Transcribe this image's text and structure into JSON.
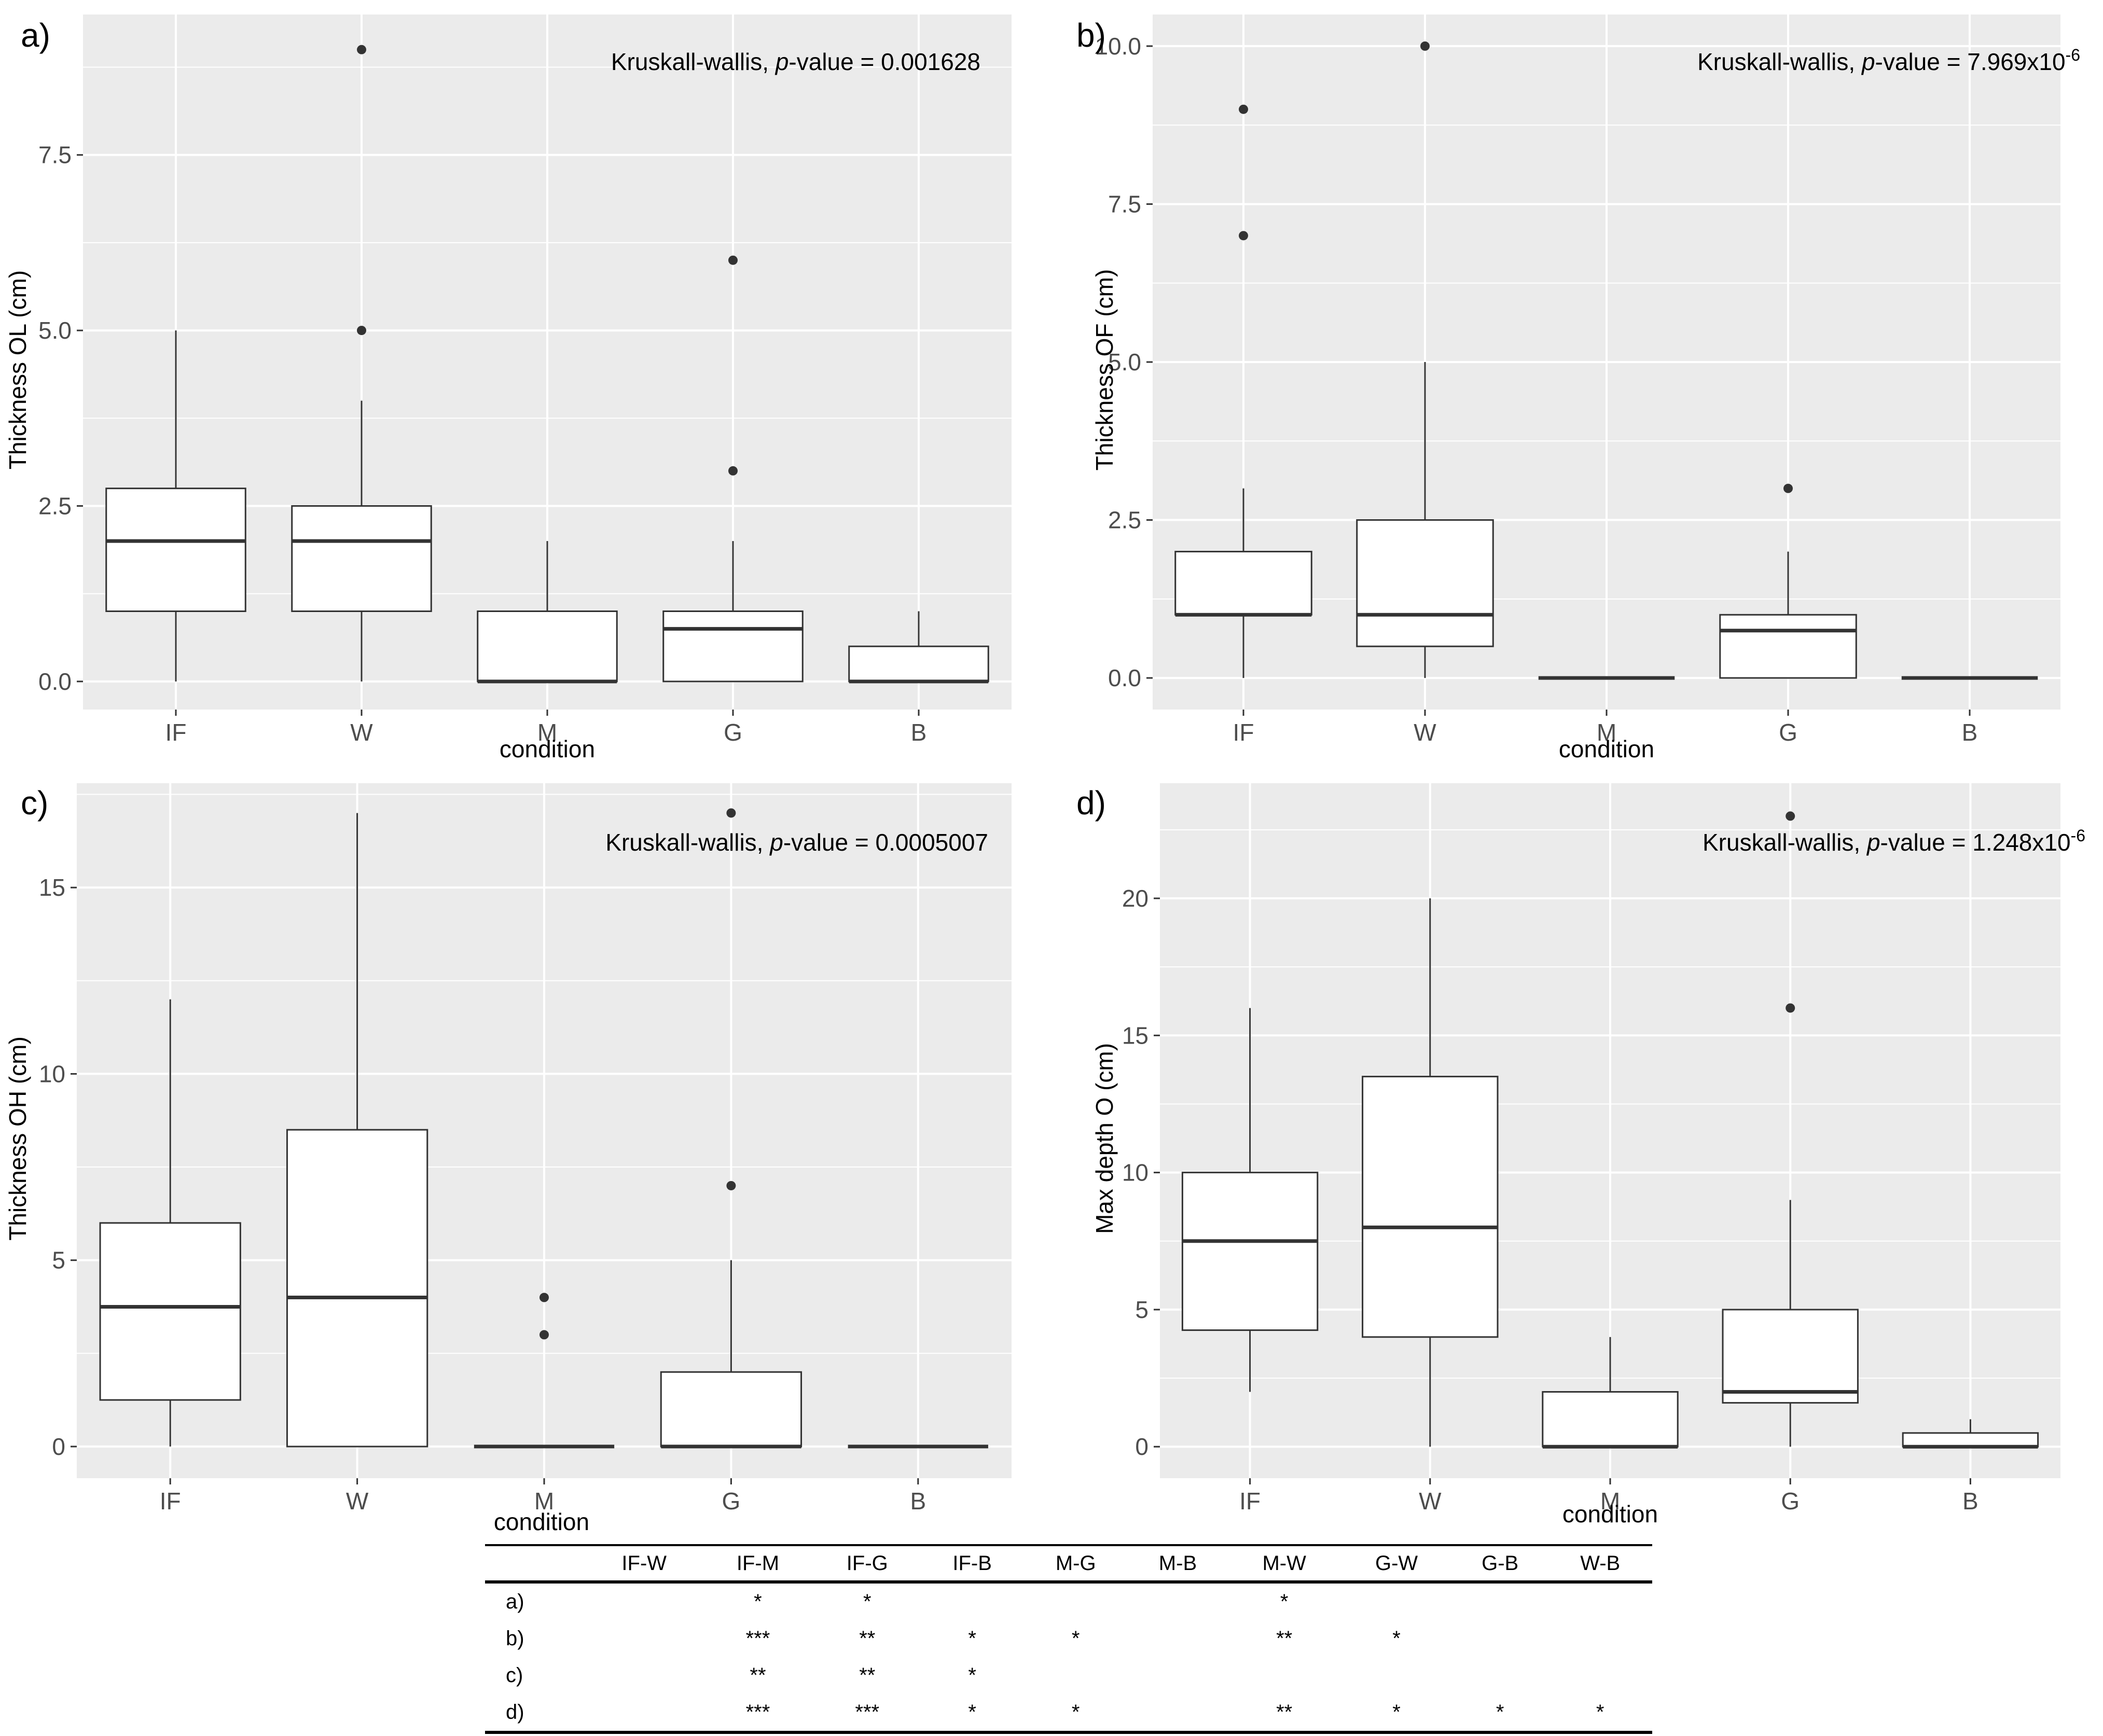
{
  "chart_data": [
    {
      "type": "box",
      "panel_label": "a)",
      "annotation": {
        "prefix": "Kruskall-wallis, ",
        "p": "p",
        "mid": "-value = ",
        "value": "0.001628",
        "exp": ""
      },
      "xlabel": "condition",
      "ylabel": "Thickness OL (cm)",
      "ylim": [
        -0.4,
        9.5
      ],
      "yticks": [
        0,
        2.5,
        5,
        7.5
      ],
      "ytick_labels": [
        "0.0",
        "2.5",
        "5.0",
        "7.5"
      ],
      "categories": [
        "IF",
        "W",
        "M",
        "G",
        "B"
      ],
      "boxes": [
        {
          "category": "IF",
          "whislo": 0,
          "q1": 1,
          "med": 2,
          "q3": 2.75,
          "whishi": 5,
          "fliers": []
        },
        {
          "category": "W",
          "whislo": 0,
          "q1": 1,
          "med": 2,
          "q3": 2.5,
          "whishi": 4,
          "fliers": [
            5,
            9
          ]
        },
        {
          "category": "M",
          "whislo": 0,
          "q1": 0,
          "med": 0,
          "q3": 1,
          "whishi": 2,
          "fliers": []
        },
        {
          "category": "G",
          "whislo": 0,
          "q1": 0,
          "med": 0.75,
          "q3": 1,
          "whishi": 2,
          "fliers": [
            3,
            6
          ]
        },
        {
          "category": "B",
          "whislo": 0,
          "q1": 0,
          "med": 0,
          "q3": 0.5,
          "whishi": 1,
          "fliers": []
        }
      ]
    },
    {
      "type": "box",
      "panel_label": "b)",
      "annotation": {
        "prefix": "Kruskall-wallis, ",
        "p": "p",
        "mid": "-value = ",
        "value": "7.969x10",
        "exp": "-6"
      },
      "xlabel": "condition",
      "ylabel": "Thickness OF (cm)",
      "ylim": [
        -0.5,
        10.5
      ],
      "yticks": [
        0,
        2.5,
        5,
        7.5,
        10
      ],
      "ytick_labels": [
        "0.0",
        "2.5",
        "5.0",
        "7.5",
        "10.0"
      ],
      "categories": [
        "IF",
        "W",
        "M",
        "G",
        "B"
      ],
      "boxes": [
        {
          "category": "IF",
          "whislo": 0,
          "q1": 1,
          "med": 1,
          "q3": 2,
          "whishi": 3,
          "fliers": [
            7,
            9
          ]
        },
        {
          "category": "W",
          "whislo": 0,
          "q1": 0.5,
          "med": 1,
          "q3": 2.5,
          "whishi": 5,
          "fliers": [
            10
          ]
        },
        {
          "category": "M",
          "whislo": 0,
          "q1": 0,
          "med": 0,
          "q3": 0,
          "whishi": 0,
          "fliers": []
        },
        {
          "category": "G",
          "whislo": 0,
          "q1": 0,
          "med": 0.75,
          "q3": 1,
          "whishi": 2,
          "fliers": [
            3
          ]
        },
        {
          "category": "B",
          "whislo": 0,
          "q1": 0,
          "med": 0,
          "q3": 0,
          "whishi": 0,
          "fliers": []
        }
      ]
    },
    {
      "type": "box",
      "panel_label": "c)",
      "annotation": {
        "prefix": "Kruskall-wallis, ",
        "p": "p",
        "mid": "-value = ",
        "value": "0.0005007",
        "exp": ""
      },
      "xlabel": "condition",
      "ylabel": "Thickness OH (cm)",
      "ylim": [
        -0.85,
        17.8
      ],
      "yticks": [
        0,
        5,
        10,
        15
      ],
      "ytick_labels": [
        "0",
        "5",
        "10",
        "15"
      ],
      "categories": [
        "IF",
        "W",
        "M",
        "G",
        "B"
      ],
      "boxes": [
        {
          "category": "IF",
          "whislo": 0,
          "q1": 1.25,
          "med": 3.75,
          "q3": 6,
          "whishi": 12,
          "fliers": []
        },
        {
          "category": "W",
          "whislo": 0,
          "q1": 0,
          "med": 4,
          "q3": 8.5,
          "whishi": 17,
          "fliers": []
        },
        {
          "category": "M",
          "whislo": 0,
          "q1": 0,
          "med": 0,
          "q3": 0,
          "whishi": 0,
          "fliers": [
            3,
            4
          ]
        },
        {
          "category": "G",
          "whislo": 0,
          "q1": 0,
          "med": 0,
          "q3": 2,
          "whishi": 5,
          "fliers": [
            7,
            17
          ]
        },
        {
          "category": "B",
          "whislo": 0,
          "q1": 0,
          "med": 0,
          "q3": 0,
          "whishi": 0,
          "fliers": []
        }
      ]
    },
    {
      "type": "box",
      "panel_label": "d)",
      "annotation": {
        "prefix": "Kruskall-wallis, ",
        "p": "p",
        "mid": "-value = ",
        "value": "1.248x10",
        "exp": "-6"
      },
      "xlabel": "condition",
      "ylabel": "Max depth O (cm)",
      "ylim": [
        -1.15,
        24.2
      ],
      "yticks": [
        0,
        5,
        10,
        15,
        20
      ],
      "ytick_labels": [
        "0",
        "5",
        "10",
        "15",
        "20"
      ],
      "categories": [
        "IF",
        "W",
        "M",
        "G",
        "B"
      ],
      "boxes": [
        {
          "category": "IF",
          "whislo": 2,
          "q1": 4.25,
          "med": 7.5,
          "q3": 10,
          "whishi": 16,
          "fliers": []
        },
        {
          "category": "W",
          "whislo": 0,
          "q1": 4,
          "med": 8,
          "q3": 13.5,
          "whishi": 20,
          "fliers": []
        },
        {
          "category": "M",
          "whislo": 0,
          "q1": 0,
          "med": 0,
          "q3": 2,
          "whishi": 4,
          "fliers": []
        },
        {
          "category": "G",
          "whislo": 0,
          "q1": 1.6,
          "med": 2,
          "q3": 5,
          "whishi": 9,
          "fliers": [
            16,
            23
          ]
        },
        {
          "category": "B",
          "whislo": 0,
          "q1": 0,
          "med": 0,
          "q3": 0.5,
          "whishi": 1,
          "fliers": []
        }
      ]
    }
  ],
  "table": {
    "header": [
      "",
      "IF-W",
      "IF-M",
      "IF-G",
      "IF-B",
      "M-G",
      "M-B",
      "M-W",
      "G-W",
      "G-B",
      "W-B"
    ],
    "rows": [
      [
        "a)",
        "",
        "*",
        "*",
        "",
        "",
        "",
        "*",
        "",
        "",
        ""
      ],
      [
        "b)",
        "",
        "***",
        "**",
        "*",
        "*",
        "",
        "**",
        "*",
        "",
        ""
      ],
      [
        "c)",
        "",
        "**",
        "**",
        "*",
        "",
        "",
        "",
        "",
        "",
        ""
      ],
      [
        "d)",
        "",
        "***",
        "***",
        "*",
        "*",
        "",
        "**",
        "*",
        "*",
        "*"
      ]
    ]
  },
  "colors": {
    "panel_bg": "#EBEBEB",
    "grid": "#FFFFFF",
    "box_fill": "#FFFFFF",
    "line": "#333333",
    "tick_text": "#4D4D4D"
  }
}
